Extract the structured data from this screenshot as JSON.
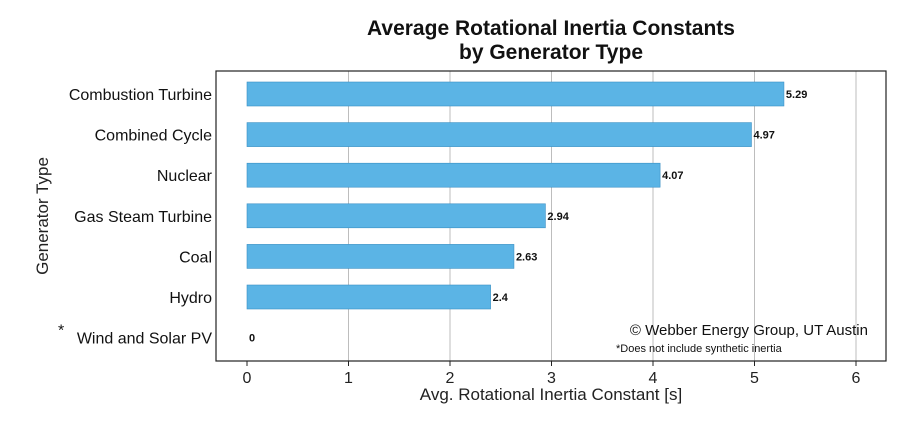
{
  "chart_data": {
    "type": "bar",
    "orientation": "horizontal",
    "title_lines": [
      "Average Rotational Inertia Constants",
      "by Generator Type"
    ],
    "xlabel": "Avg. Rotational Inertia Constant [s]",
    "ylabel": "Generator Type",
    "categories": [
      "Combustion Turbine",
      "Combined Cycle",
      "Nuclear",
      "Gas Steam Turbine",
      "Coal",
      "Hydro",
      "Wind and Solar PV"
    ],
    "category_markers": [
      "",
      "",
      "",
      "",
      "",
      "",
      "*"
    ],
    "values": [
      5.29,
      4.97,
      4.07,
      2.94,
      2.63,
      2.4,
      0
    ],
    "value_labels": [
      "5.29",
      "4.97",
      "4.07",
      "2.94",
      "2.63",
      "2.4",
      "0"
    ],
    "xlim": [
      0,
      6
    ],
    "xticks": [
      0,
      1,
      2,
      3,
      4,
      5,
      6
    ],
    "grid": "vertical",
    "bar_color": "#5bb4e5",
    "annotations": {
      "credit": "© Webber Energy Group, UT Austin",
      "footnote": "*Does not include synthetic inertia"
    }
  }
}
